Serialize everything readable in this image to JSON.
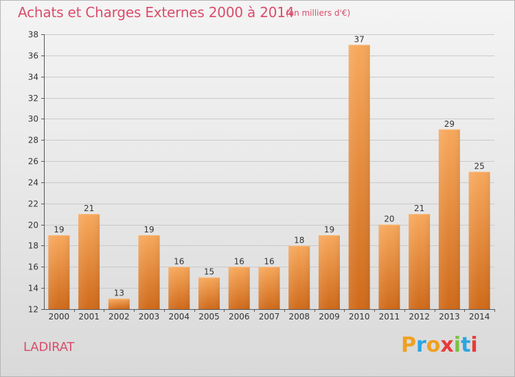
{
  "header": {
    "title": "Achats et Charges Externes 2000 à 2014",
    "subtitle": "(en milliers d'€)"
  },
  "footer": {
    "commune": "LADIRAT",
    "logo_text": "Proxiti",
    "logo_colors": [
      "#f0a020",
      "#2aa6e0",
      "#f0a020",
      "#e83a3a",
      "#7bc043",
      "#2aa6e0",
      "#e83a3a"
    ]
  },
  "colors": {
    "title": "#d94d6b",
    "bar_light": "#f5a35a",
    "bar_dark": "#d2701f",
    "grid": "#c8c8c8"
  },
  "chart_data": {
    "type": "bar",
    "title": "Achats et Charges Externes 2000 à 2014",
    "subtitle": "(en milliers d'€)",
    "categories": [
      "2000",
      "2001",
      "2002",
      "2003",
      "2004",
      "2005",
      "2006",
      "2007",
      "2008",
      "2009",
      "2010",
      "2011",
      "2012",
      "2013",
      "2014"
    ],
    "values": [
      19,
      21,
      13,
      19,
      16,
      15,
      16,
      16,
      18,
      19,
      37,
      20,
      21,
      29,
      25
    ],
    "value_labels": [
      "19",
      "21",
      "13",
      "19",
      "16",
      "15",
      "16",
      "16",
      "18",
      "19",
      "37",
      "20",
      "21",
      "29",
      "25"
    ],
    "ylim": [
      12,
      38
    ],
    "yticks": [
      12,
      14,
      16,
      18,
      20,
      22,
      24,
      26,
      28,
      30,
      32,
      34,
      36,
      38
    ],
    "ytick_labels": [
      "12",
      "14",
      "16",
      "18",
      "20",
      "22",
      "24",
      "26",
      "28",
      "30",
      "32",
      "34",
      "36",
      "38"
    ],
    "grid": true
  }
}
